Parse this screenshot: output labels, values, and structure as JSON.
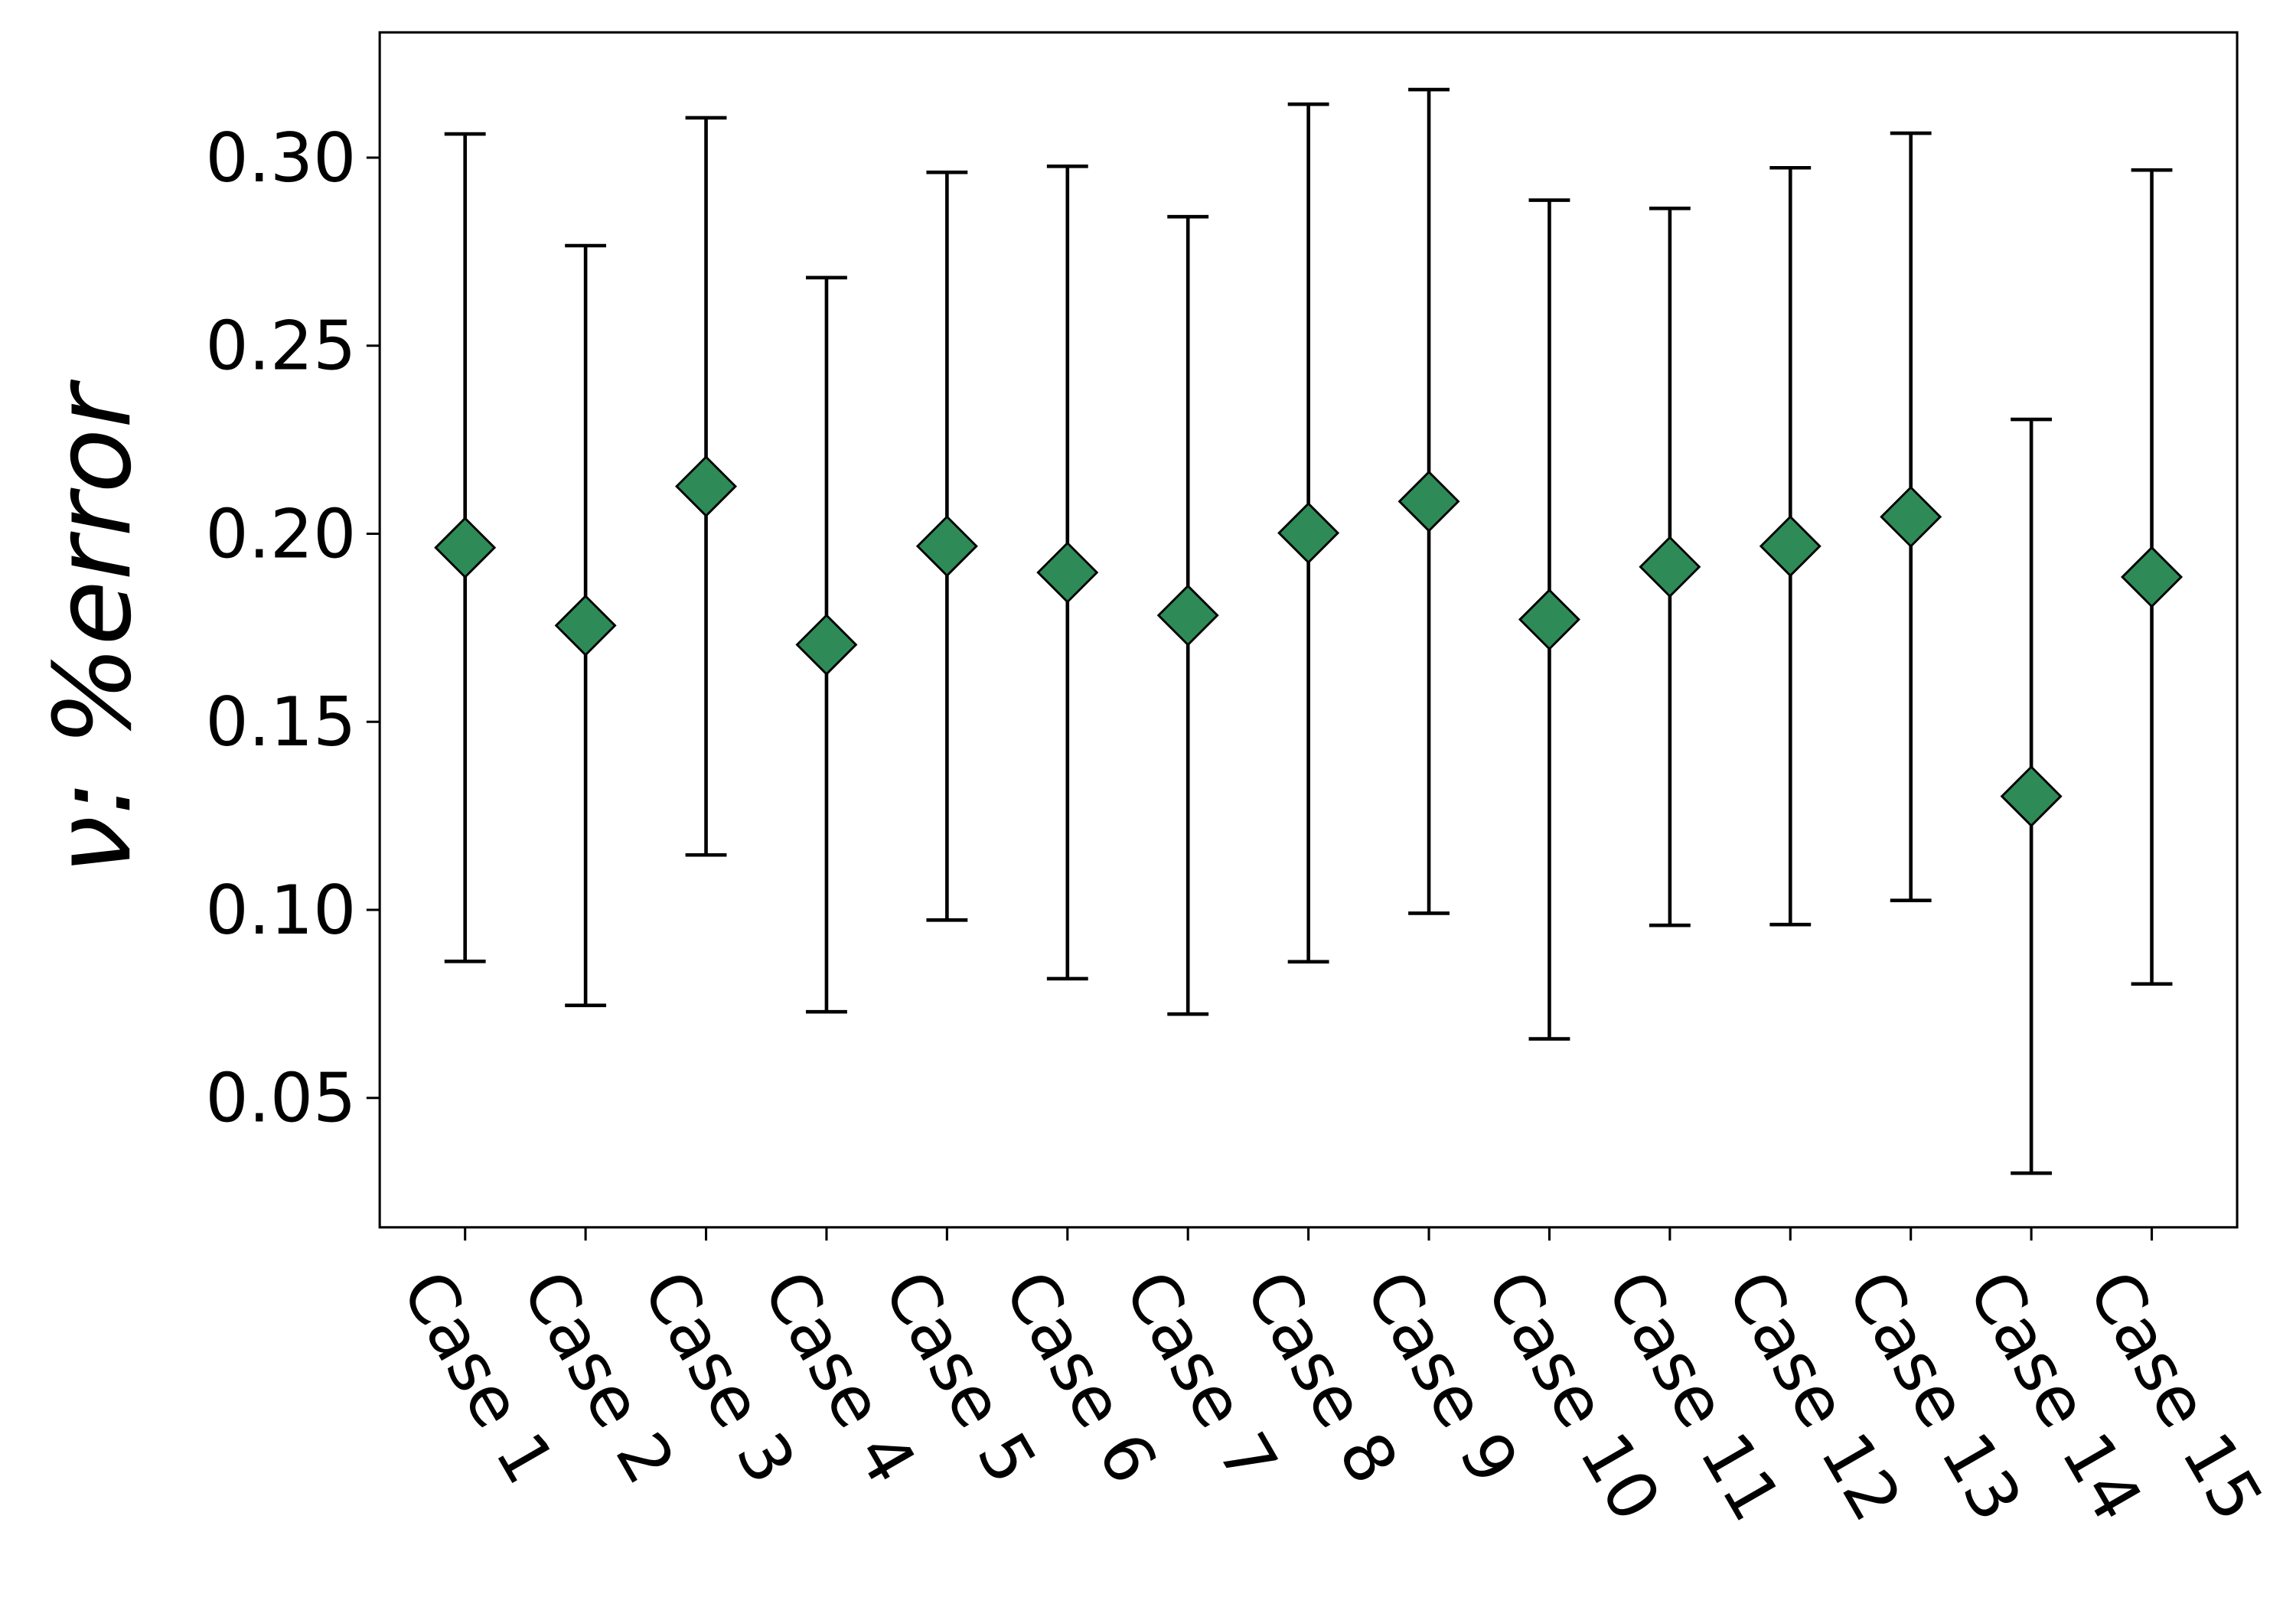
{
  "chart_data": {
    "type": "errorbar",
    "y_label": "ν: %error",
    "categories": [
      "Case 1",
      "Case 2",
      "Case 3",
      "Case 4",
      "Case 5",
      "Case 6",
      "Case 7",
      "Case 8",
      "Case 9",
      "Case 10",
      "Case 11",
      "Case 12",
      "Case 13",
      "Case 14",
      "Case 15"
    ],
    "values": [
      0.1963,
      0.1756,
      0.2126,
      0.1705,
      0.1967,
      0.1897,
      0.1783,
      0.2002,
      0.2086,
      0.1772,
      0.1912,
      0.1967,
      0.2045,
      0.1302,
      0.1885
    ],
    "errors": [
      0.11,
      0.101,
      0.098,
      0.0976,
      0.0994,
      0.108,
      0.106,
      0.114,
      0.1095,
      0.1115,
      0.0953,
      0.1006,
      0.102,
      0.1002,
      0.1082
    ],
    "color": "#2e8b57",
    "ylim": [
      0.0156,
      0.3333
    ],
    "yticks": [
      {
        "value": 0.3,
        "label": "0.30"
      },
      0.25,
      {
        "value": 0.2,
        "label": "0.20"
      },
      0.15,
      {
        "value": 0.1,
        "label": "0.10"
      },
      0.05
    ]
  }
}
